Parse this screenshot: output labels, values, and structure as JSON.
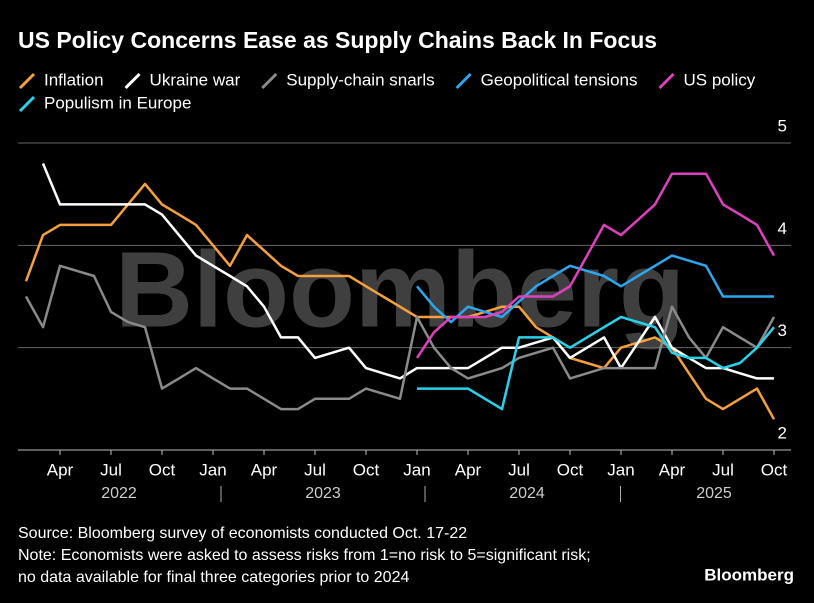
{
  "chart_data": {
    "type": "line",
    "title": "US Policy Concerns Ease as Supply Chains Back In Focus",
    "watermark": "Bloomberg",
    "source": "Source: Bloomberg survey of economists conducted Oct. 17-22",
    "note_lines": [
      "Note: Economists were asked to assess risks from 1=no risk to 5=significant risk;",
      "no data available for final three categories prior to 2024"
    ],
    "logo": "Bloomberg",
    "x": [
      "2022-02",
      "2022-03",
      "2022-04",
      "2022-05",
      "2022-06",
      "2022-07",
      "2022-08",
      "2022-09",
      "2022-10",
      "2022-11",
      "2022-12",
      "2023-01",
      "2023-02",
      "2023-03",
      "2023-04",
      "2023-05",
      "2023-06",
      "2023-07",
      "2023-08",
      "2023-09",
      "2023-10",
      "2023-11",
      "2023-12",
      "2024-01",
      "2024-02",
      "2024-03",
      "2024-04",
      "2024-05",
      "2024-06",
      "2024-07",
      "2024-08",
      "2024-09",
      "2024-10",
      "2024-11",
      "2024-12",
      "2025-01",
      "2025-02",
      "2025-03",
      "2025-04",
      "2025-05",
      "2025-06",
      "2025-07",
      "2025-08",
      "2025-09",
      "2025-10"
    ],
    "xlim": [
      "2022-01",
      "2025-11"
    ],
    "xticks": [
      {
        "value": "2022-04",
        "label": "Apr"
      },
      {
        "value": "2022-07",
        "label": "Jul"
      },
      {
        "value": "2022-10",
        "label": "Oct"
      },
      {
        "value": "2023-01",
        "label": "Jan"
      },
      {
        "value": "2023-04",
        "label": "Apr"
      },
      {
        "value": "2023-07",
        "label": "Jul"
      },
      {
        "value": "2023-10",
        "label": "Oct"
      },
      {
        "value": "2024-01",
        "label": "Jan"
      },
      {
        "value": "2024-04",
        "label": "Apr"
      },
      {
        "value": "2024-07",
        "label": "Jul"
      },
      {
        "value": "2024-10",
        "label": "Oct"
      },
      {
        "value": "2025-01",
        "label": "Jan"
      },
      {
        "value": "2025-04",
        "label": "Apr"
      },
      {
        "value": "2025-07",
        "label": "Jul"
      },
      {
        "value": "2025-10",
        "label": "Oct"
      }
    ],
    "year_labels": [
      {
        "value": "2022-07",
        "label": "2022"
      },
      {
        "value": "2023-07",
        "label": "2023"
      },
      {
        "value": "2024-07",
        "label": "2024"
      },
      {
        "value": "2025-06",
        "label": "2025"
      }
    ],
    "ylim": [
      2,
      5
    ],
    "yticks": [
      2,
      3,
      4,
      5
    ],
    "grid": true,
    "series": [
      {
        "name": "Inflation",
        "color": "#f5a03a",
        "values": [
          3.65,
          4.1,
          4.2,
          4.2,
          4.2,
          4.2,
          4.4,
          4.6,
          4.4,
          4.3,
          4.2,
          4.0,
          3.8,
          4.1,
          3.95,
          3.8,
          3.7,
          3.7,
          3.7,
          3.7,
          3.6,
          3.5,
          3.4,
          3.3,
          3.3,
          3.3,
          3.3,
          3.35,
          3.4,
          3.4,
          3.2,
          3.1,
          2.9,
          2.85,
          2.8,
          3.0,
          3.05,
          3.1,
          3.0,
          2.75,
          2.5,
          2.4,
          2.5,
          2.6,
          2.3
        ]
      },
      {
        "name": "Ukraine war",
        "color": "#ffffff",
        "values": [
          null,
          4.8,
          4.4,
          4.4,
          4.4,
          4.4,
          4.4,
          4.4,
          4.3,
          4.1,
          3.9,
          3.8,
          3.7,
          3.6,
          3.4,
          3.1,
          3.1,
          2.9,
          2.95,
          3.0,
          2.8,
          2.75,
          2.7,
          2.8,
          2.8,
          2.8,
          2.8,
          2.9,
          3.0,
          3.0,
          3.05,
          3.1,
          2.9,
          3.0,
          3.1,
          2.8,
          3.05,
          3.3,
          3.0,
          2.9,
          2.8,
          2.8,
          2.75,
          2.7,
          2.7
        ]
      },
      {
        "name": "Supply-chain snarls",
        "color": "#8a8a8a",
        "values": [
          3.5,
          3.2,
          3.8,
          3.75,
          3.7,
          3.35,
          3.25,
          3.2,
          2.6,
          2.7,
          2.8,
          2.7,
          2.6,
          2.6,
          2.5,
          2.4,
          2.4,
          2.5,
          2.5,
          2.5,
          2.6,
          2.55,
          2.5,
          3.3,
          3.0,
          2.8,
          2.7,
          2.75,
          2.8,
          2.9,
          2.95,
          3.0,
          2.7,
          2.75,
          2.8,
          2.8,
          2.8,
          2.8,
          3.4,
          3.1,
          2.9,
          3.2,
          3.1,
          3.0,
          3.3
        ]
      },
      {
        "name": "Geopolitical tensions",
        "color": "#2aa7f0",
        "values": [
          null,
          null,
          null,
          null,
          null,
          null,
          null,
          null,
          null,
          null,
          null,
          null,
          null,
          null,
          null,
          null,
          null,
          null,
          null,
          null,
          null,
          null,
          null,
          3.6,
          3.4,
          3.25,
          3.4,
          3.35,
          3.3,
          3.45,
          3.6,
          3.7,
          3.8,
          3.75,
          3.7,
          3.6,
          3.7,
          3.8,
          3.9,
          3.85,
          3.8,
          3.5,
          3.5,
          3.5,
          3.5
        ]
      },
      {
        "name": "US policy",
        "color": "#e040c0",
        "values": [
          null,
          null,
          null,
          null,
          null,
          null,
          null,
          null,
          null,
          null,
          null,
          null,
          null,
          null,
          null,
          null,
          null,
          null,
          null,
          null,
          null,
          null,
          null,
          2.9,
          3.15,
          3.3,
          3.3,
          3.3,
          3.35,
          3.5,
          3.5,
          3.5,
          3.6,
          3.9,
          4.2,
          4.1,
          4.25,
          4.4,
          4.7,
          4.7,
          4.7,
          4.4,
          4.3,
          4.2,
          3.9
        ]
      },
      {
        "name": "Populism in Europe",
        "color": "#27d3ec",
        "values": [
          null,
          null,
          null,
          null,
          null,
          null,
          null,
          null,
          null,
          null,
          null,
          null,
          null,
          null,
          null,
          null,
          null,
          null,
          null,
          null,
          null,
          null,
          null,
          2.6,
          2.6,
          2.6,
          2.6,
          2.5,
          2.4,
          3.1,
          3.1,
          3.1,
          3.0,
          3.1,
          3.2,
          3.3,
          3.25,
          3.2,
          2.95,
          2.9,
          2.9,
          2.8,
          2.85,
          3.0,
          3.2
        ]
      }
    ]
  }
}
